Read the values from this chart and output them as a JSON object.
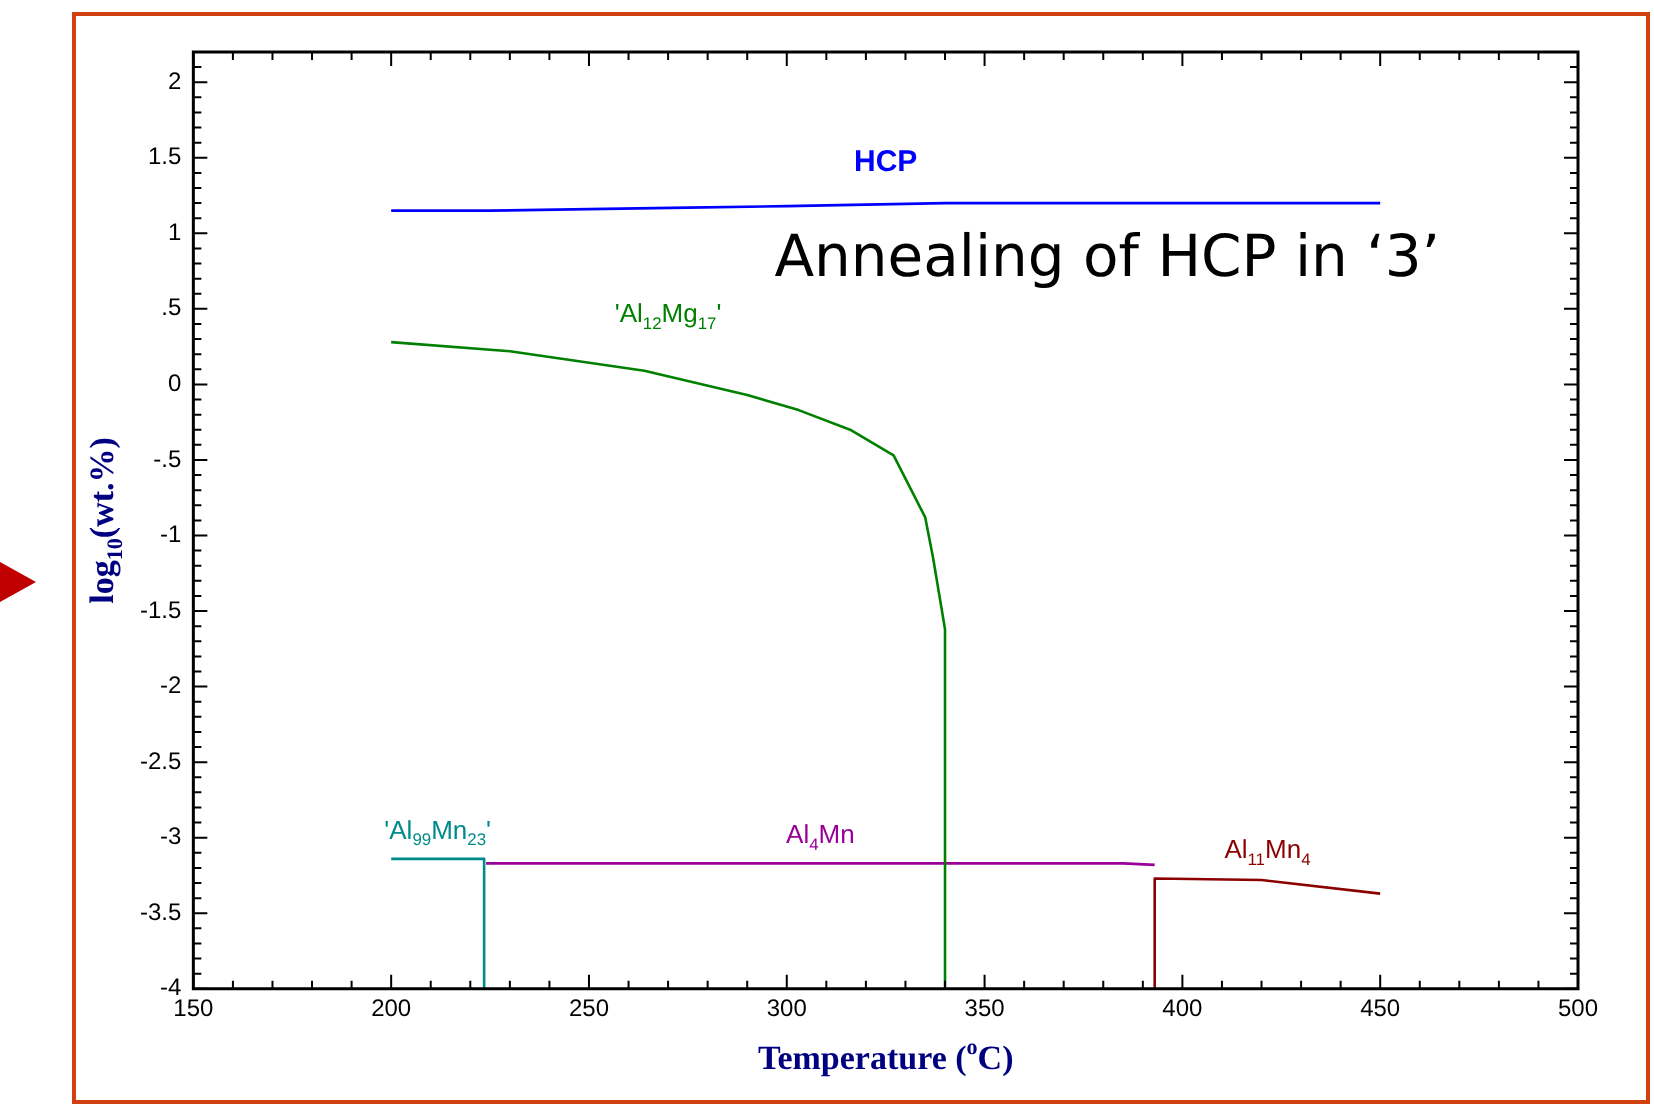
{
  "chart_data": {
    "type": "line",
    "xlabel": "Temperature ($^{o}$C)",
    "ylabel": "log$_{10}$(wt.%)",
    "xlim": [
      150,
      500
    ],
    "ylim": [
      -4,
      2.2
    ],
    "xticks": [
      150,
      200,
      250,
      300,
      350,
      400,
      450,
      500
    ],
    "yticks": [
      -4,
      -3.5,
      -3,
      -2.5,
      -2,
      -1.5,
      -1,
      {
        "value": -0.5,
        "label": "-.5"
      },
      0,
      {
        "value": 0.5,
        "label": ".5"
      },
      1,
      1.5,
      2
    ],
    "grid": false,
    "legend": false,
    "marker": "none",
    "line_style": "solid",
    "annotations": [
      "Annealing of HCP in ‘3’"
    ],
    "series": [
      {
        "name": "HCP",
        "color": "#0000ff",
        "x": [
          200,
          225,
          250,
          275,
          300,
          320,
          340,
          360,
          400,
          450
        ],
        "values": [
          1.15,
          1.15,
          1.16,
          1.17,
          1.18,
          1.19,
          1.2,
          1.2,
          1.2,
          1.2
        ]
      },
      {
        "name": "'Al$_{12}$Mg$_{17}$'",
        "color": "#008000",
        "x": [
          200,
          230,
          264,
          290,
          303,
          316,
          327,
          335,
          337,
          340,
          340
        ],
        "values": [
          0.28,
          0.22,
          0.09,
          -0.07,
          -0.17,
          -0.3,
          -0.47,
          -0.88,
          -1.15,
          -1.62,
          -4
        ]
      },
      {
        "name": "'Al$_{99}$Mn$_{23}$'",
        "color": "#008b8b",
        "x": [
          200,
          223.5,
          223.5
        ],
        "values": [
          -3.14,
          -3.14,
          -4
        ]
      },
      {
        "name": "Al$_{4}$Mn",
        "color": "#990099",
        "x": [
          224,
          300,
          385,
          393
        ],
        "values": [
          -3.17,
          -3.17,
          -3.17,
          -3.18
        ]
      },
      {
        "name": "Al$_{11}$Mn$_{4}$",
        "color": "#8b0000",
        "x": [
          393,
          393,
          420,
          450
        ],
        "values": [
          -4,
          -3.27,
          -3.28,
          -3.37
        ]
      }
    ]
  }
}
